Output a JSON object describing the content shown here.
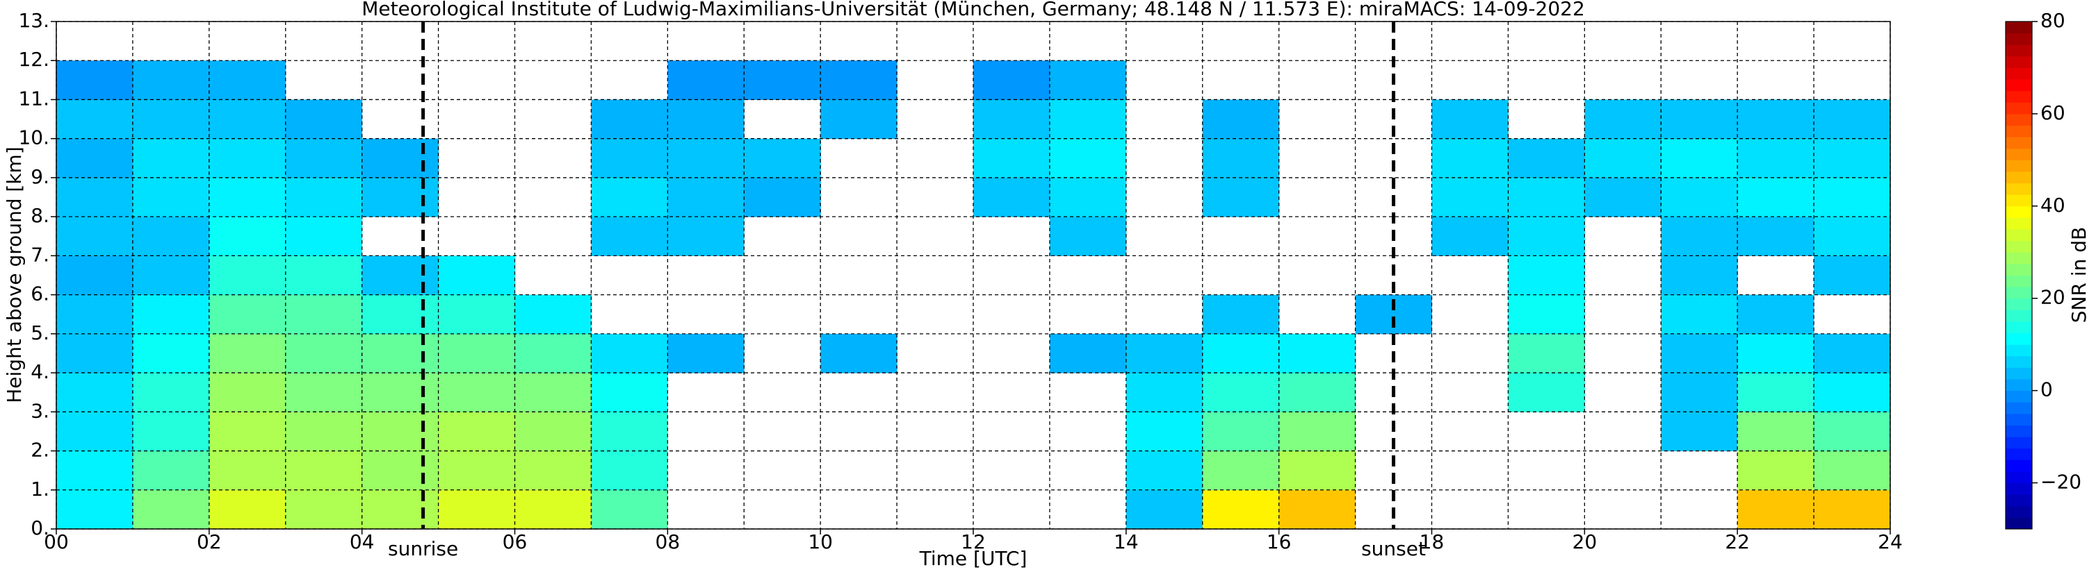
{
  "chart_data": {
    "type": "heatmap",
    "title": "Meteorological Institute of Ludwig-Maximilians-Universität (München, Germany; 48.148 N / 11.573 E):    miraMACS: 14-09-2022",
    "x_label": "Time [UTC]",
    "y_label": "Height above ground [km]",
    "colorbar_label": "SNR in dB",
    "colormap": "jet",
    "grid": true,
    "xlim": [
      0,
      24
    ],
    "ylim": [
      0,
      13
    ],
    "clim": [
      -30,
      80
    ],
    "xticks": [
      {
        "value": 0,
        "label": "00"
      },
      {
        "value": 2,
        "label": "02"
      },
      {
        "value": 4,
        "label": "04"
      },
      {
        "value": 6,
        "label": "06"
      },
      {
        "value": 8,
        "label": "08"
      },
      {
        "value": 10,
        "label": "10"
      },
      {
        "value": 12,
        "label": "12"
      },
      {
        "value": 14,
        "label": "14"
      },
      {
        "value": 16,
        "label": "16"
      },
      {
        "value": 18,
        "label": "18"
      },
      {
        "value": 20,
        "label": "20"
      },
      {
        "value": 22,
        "label": "22"
      },
      {
        "value": 24,
        "label": "24"
      }
    ],
    "xgrid_minor": [
      1,
      3,
      5,
      7,
      9,
      11,
      13,
      15,
      17,
      19,
      21,
      23
    ],
    "yticks": [
      {
        "value": 0,
        "label": "0."
      },
      {
        "value": 1,
        "label": "1."
      },
      {
        "value": 2,
        "label": "2."
      },
      {
        "value": 3,
        "label": "3."
      },
      {
        "value": 4,
        "label": "4."
      },
      {
        "value": 5,
        "label": "5."
      },
      {
        "value": 6,
        "label": "6."
      },
      {
        "value": 7,
        "label": "7."
      },
      {
        "value": 8,
        "label": "8."
      },
      {
        "value": 9,
        "label": "9."
      },
      {
        "value": 10,
        "label": "10."
      },
      {
        "value": 11,
        "label": "11."
      },
      {
        "value": 12,
        "label": "12."
      },
      {
        "value": 13,
        "label": "13."
      }
    ],
    "cticks": [
      {
        "value": -20,
        "label": "−20"
      },
      0,
      20,
      40,
      60,
      80
    ],
    "markers": [
      {
        "x": 4.8,
        "label": "sunrise"
      },
      {
        "x": 17.5,
        "label": "sunset"
      }
    ],
    "values": [
      [
        10,
        10,
        8,
        8,
        5,
        5,
        3,
        5,
        5,
        3,
        5,
        0,
        null
      ],
      [
        25,
        20,
        15,
        15,
        12,
        10,
        5,
        5,
        8,
        8,
        5,
        3,
        null
      ],
      [
        35,
        30,
        30,
        28,
        25,
        20,
        15,
        12,
        10,
        8,
        5,
        3,
        null
      ],
      [
        30,
        30,
        28,
        25,
        22,
        20,
        15,
        10,
        8,
        5,
        3,
        null,
        null
      ],
      [
        30,
        28,
        28,
        25,
        22,
        15,
        5,
        null,
        5,
        3,
        null,
        null,
        null
      ],
      [
        35,
        30,
        30,
        25,
        22,
        15,
        10,
        null,
        null,
        null,
        null,
        null,
        null
      ],
      [
        35,
        30,
        28,
        25,
        20,
        10,
        null,
        null,
        null,
        null,
        null,
        null,
        null
      ],
      [
        20,
        15,
        15,
        12,
        8,
        null,
        null,
        5,
        8,
        5,
        3,
        null,
        null
      ],
      [
        null,
        null,
        null,
        null,
        3,
        null,
        null,
        5,
        5,
        5,
        3,
        0,
        null
      ],
      [
        null,
        null,
        null,
        null,
        null,
        null,
        null,
        null,
        3,
        5,
        null,
        0,
        null
      ],
      [
        null,
        null,
        null,
        null,
        3,
        null,
        null,
        null,
        null,
        null,
        3,
        0,
        null
      ],
      [
        null,
        null,
        null,
        null,
        null,
        null,
        null,
        null,
        null,
        null,
        null,
        null,
        null
      ],
      [
        null,
        null,
        null,
        null,
        null,
        null,
        null,
        null,
        5,
        8,
        5,
        0,
        null
      ],
      [
        null,
        null,
        null,
        null,
        3,
        null,
        null,
        5,
        8,
        10,
        8,
        3,
        null
      ],
      [
        5,
        8,
        10,
        8,
        5,
        null,
        null,
        null,
        null,
        null,
        null,
        null,
        null
      ],
      [
        40,
        25,
        20,
        15,
        10,
        5,
        null,
        null,
        5,
        5,
        3,
        null,
        null
      ],
      [
        45,
        30,
        25,
        18,
        10,
        null,
        null,
        null,
        null,
        null,
        null,
        null,
        null
      ],
      [
        null,
        null,
        null,
        null,
        null,
        3,
        null,
        null,
        null,
        null,
        null,
        null,
        null
      ],
      [
        null,
        null,
        null,
        null,
        null,
        null,
        null,
        5,
        8,
        8,
        5,
        null,
        null
      ],
      [
        null,
        null,
        null,
        15,
        18,
        12,
        10,
        8,
        8,
        5,
        null,
        null,
        null
      ],
      [
        null,
        null,
        null,
        null,
        null,
        null,
        null,
        null,
        5,
        8,
        5,
        null,
        null
      ],
      [
        null,
        null,
        5,
        5,
        5,
        8,
        5,
        5,
        8,
        10,
        5,
        null,
        null
      ],
      [
        45,
        30,
        25,
        15,
        10,
        5,
        null,
        5,
        10,
        8,
        5,
        null,
        null
      ],
      [
        45,
        25,
        20,
        10,
        5,
        null,
        5,
        8,
        10,
        8,
        5,
        null,
        null
      ]
    ]
  }
}
